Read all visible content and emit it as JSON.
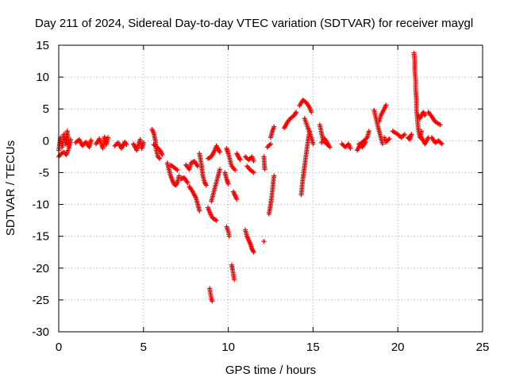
{
  "chart_data": {
    "type": "scatter",
    "title": "Day 211 of 2024, Sidereal Day-to-day VTEC variation (SDTVAR) for receiver maygl",
    "xlabel": "GPS time / hours",
    "ylabel": "SDTVAR / TECUs",
    "xlim": [
      0,
      25
    ],
    "ylim": [
      -30,
      15
    ],
    "xticks": [
      0,
      5,
      10,
      15,
      20,
      25
    ],
    "yticks": [
      -30,
      -25,
      -20,
      -15,
      -10,
      -5,
      0,
      5,
      10,
      15
    ],
    "grid": true,
    "marker": "+",
    "color": "#ff0000",
    "series": [
      {
        "name": "SDTVAR",
        "segments": [
          [
            [
              0.0,
              -1.5
            ],
            [
              0.1,
              0.5
            ],
            [
              0.2,
              -1.0
            ],
            [
              0.3,
              1.0
            ],
            [
              0.4,
              -0.5
            ],
            [
              0.5,
              1.5
            ],
            [
              0.6,
              -1.2
            ],
            [
              0.7,
              0.2
            ]
          ],
          [
            [
              0.0,
              -2.5
            ],
            [
              0.15,
              -2.0
            ],
            [
              0.3,
              -1.8
            ],
            [
              0.45,
              -2.2
            ],
            [
              0.55,
              -1.5
            ]
          ],
          [
            [
              1.0,
              -0.3
            ],
            [
              1.2,
              0.2
            ],
            [
              1.4,
              -0.8
            ],
            [
              1.6,
              -0.2
            ],
            [
              1.8,
              -1.0
            ],
            [
              1.9,
              0.1
            ]
          ],
          [
            [
              2.2,
              -0.5
            ],
            [
              2.4,
              0.3
            ],
            [
              2.6,
              -1.2
            ],
            [
              2.7,
              0.6
            ],
            [
              2.8,
              -0.6
            ],
            [
              2.9,
              0.5
            ]
          ],
          [
            [
              3.3,
              -0.8
            ],
            [
              3.5,
              -0.3
            ],
            [
              3.7,
              -1.2
            ],
            [
              3.9,
              -0.2
            ],
            [
              4.0,
              -0.6
            ]
          ],
          [
            [
              4.4,
              -0.5
            ],
            [
              4.6,
              -1.5
            ],
            [
              4.8,
              0.2
            ],
            [
              4.9,
              -1.2
            ],
            [
              5.0,
              -0.3
            ]
          ],
          [
            [
              5.5,
              1.8
            ],
            [
              5.6,
              1.2
            ],
            [
              5.7,
              0.0
            ],
            [
              5.75,
              -1.5
            ],
            [
              5.85,
              -2.5
            ],
            [
              5.95,
              -2.8
            ]
          ],
          [
            [
              5.6,
              -0.6
            ],
            [
              5.8,
              -1.0
            ],
            [
              6.0,
              -1.6
            ],
            [
              6.1,
              -2.2
            ]
          ],
          [
            [
              6.4,
              -3.5
            ],
            [
              6.5,
              -4.5
            ],
            [
              6.6,
              -5.5
            ],
            [
              6.7,
              -6.2
            ],
            [
              6.8,
              -6.8
            ],
            [
              6.9,
              -7.0
            ],
            [
              7.0,
              -6.5
            ],
            [
              7.1,
              -5.5
            ]
          ],
          [
            [
              6.6,
              -3.8
            ],
            [
              6.8,
              -4.2
            ],
            [
              7.0,
              -4.6
            ]
          ],
          [
            [
              7.2,
              -6.0
            ],
            [
              7.4,
              -5.8
            ],
            [
              7.6,
              -6.6
            ]
          ],
          [
            [
              7.5,
              -3.8
            ],
            [
              7.7,
              -4.5
            ],
            [
              7.8,
              -3.5
            ],
            [
              8.0,
              -3.2
            ],
            [
              8.2,
              -4.0
            ]
          ],
          [
            [
              7.7,
              -7.2
            ],
            [
              7.9,
              -8.0
            ],
            [
              8.1,
              -9.0
            ],
            [
              8.2,
              -10.0
            ],
            [
              8.3,
              -11.0
            ]
          ],
          [
            [
              8.3,
              -2.0
            ],
            [
              8.4,
              -3.5
            ],
            [
              8.5,
              -5.5
            ],
            [
              8.6,
              -6.5
            ],
            [
              8.7,
              -7.0
            ]
          ],
          [
            [
              8.8,
              -10.5
            ],
            [
              8.9,
              -11.2
            ],
            [
              9.0,
              -11.8
            ],
            [
              9.1,
              -12.2
            ],
            [
              9.3,
              -12.5
            ]
          ],
          [
            [
              8.8,
              -2.8
            ],
            [
              9.0,
              -2.5
            ],
            [
              9.2,
              -1.5
            ],
            [
              9.3,
              -0.8
            ],
            [
              9.5,
              -1.8
            ]
          ],
          [
            [
              9.0,
              -9.5
            ],
            [
              9.1,
              -8.5
            ],
            [
              9.2,
              -7.5
            ],
            [
              9.3,
              -6.5
            ],
            [
              9.4,
              -5.5
            ],
            [
              9.5,
              -4.5
            ]
          ],
          [
            [
              8.9,
              -23.2
            ],
            [
              8.95,
              -24.0
            ],
            [
              9.0,
              -24.8
            ],
            [
              9.05,
              -25.2
            ]
          ],
          [
            [
              9.9,
              -1.2
            ],
            [
              10.0,
              -2.0
            ],
            [
              10.1,
              -3.0
            ],
            [
              10.2,
              -4.0
            ],
            [
              10.4,
              -4.6
            ]
          ],
          [
            [
              9.8,
              -5.0
            ],
            [
              9.9,
              -6.0
            ],
            [
              10.0,
              -6.8
            ]
          ],
          [
            [
              10.3,
              -8.0
            ],
            [
              10.4,
              -8.6
            ],
            [
              10.5,
              -9.2
            ]
          ],
          [
            [
              9.9,
              -13.5
            ],
            [
              10.0,
              -14.2
            ],
            [
              10.05,
              -15.0
            ]
          ],
          [
            [
              10.2,
              -19.5
            ],
            [
              10.25,
              -20.2
            ],
            [
              10.3,
              -21.0
            ],
            [
              10.35,
              -21.8
            ]
          ],
          [
            [
              10.5,
              -2.0
            ],
            [
              10.6,
              -2.5
            ],
            [
              10.7,
              -3.0
            ]
          ],
          [
            [
              11.0,
              -14.0
            ],
            [
              11.1,
              -15.0
            ],
            [
              11.2,
              -15.6
            ],
            [
              11.3,
              -16.2
            ],
            [
              11.4,
              -17.0
            ],
            [
              11.5,
              -17.5
            ]
          ],
          [
            [
              11.0,
              -2.5
            ],
            [
              11.2,
              -3.0
            ],
            [
              11.4,
              -2.5
            ],
            [
              11.5,
              -3.2
            ]
          ],
          [
            [
              11.1,
              -4.0
            ],
            [
              11.3,
              -4.6
            ],
            [
              11.5,
              -5.0
            ]
          ],
          [
            [
              12.1,
              -2.5
            ],
            [
              12.15,
              -4.5
            ]
          ],
          [
            [
              12.1,
              -15.8
            ]
          ],
          [
            [
              12.4,
              -11.5
            ],
            [
              12.5,
              -10.0
            ],
            [
              12.6,
              -8.0
            ],
            [
              12.65,
              -6.5
            ],
            [
              12.7,
              -5.5
            ]
          ],
          [
            [
              12.5,
              0.5
            ],
            [
              12.6,
              1.5
            ],
            [
              12.7,
              2.2
            ]
          ],
          [
            [
              12.3,
              -1.0
            ],
            [
              12.5,
              -0.5
            ]
          ],
          [
            [
              13.3,
              2.0
            ],
            [
              13.5,
              3.0
            ],
            [
              13.7,
              3.6
            ],
            [
              13.9,
              4.0
            ],
            [
              14.0,
              4.5
            ]
          ],
          [
            [
              14.2,
              5.5
            ],
            [
              14.4,
              6.4
            ],
            [
              14.6,
              6.0
            ],
            [
              14.8,
              5.2
            ],
            [
              14.9,
              4.5
            ]
          ],
          [
            [
              14.3,
              -8.5
            ],
            [
              14.4,
              -6.0
            ],
            [
              14.5,
              -4.0
            ],
            [
              14.6,
              -2.0
            ],
            [
              14.7,
              0.0
            ],
            [
              14.8,
              1.5
            ]
          ],
          [
            [
              14.5,
              3.5
            ],
            [
              14.7,
              2.0
            ],
            [
              14.9,
              0.5
            ],
            [
              15.0,
              -0.5
            ]
          ],
          [
            [
              15.4,
              2.5
            ],
            [
              15.5,
              1.2
            ],
            [
              15.6,
              0.0
            ],
            [
              15.8,
              -0.5
            ],
            [
              16.0,
              -1.0
            ]
          ],
          [
            [
              15.5,
              -0.3
            ],
            [
              15.7,
              0.3
            ],
            [
              15.9,
              -0.6
            ]
          ],
          [
            [
              16.7,
              -0.5
            ],
            [
              16.9,
              -1.0
            ],
            [
              17.1,
              -0.5
            ],
            [
              17.2,
              -1.2
            ]
          ],
          [
            [
              17.6,
              -1.5
            ],
            [
              17.8,
              -0.5
            ],
            [
              18.0,
              0.0
            ],
            [
              18.2,
              0.5
            ],
            [
              18.3,
              1.5
            ]
          ],
          [
            [
              17.7,
              -0.5
            ],
            [
              17.9,
              -1.0
            ],
            [
              18.1,
              -0.2
            ]
          ],
          [
            [
              18.6,
              4.8
            ],
            [
              18.8,
              2.5
            ],
            [
              18.9,
              1.5
            ],
            [
              19.0,
              0.5
            ],
            [
              19.1,
              -0.5
            ]
          ],
          [
            [
              18.9,
              3.0
            ],
            [
              19.0,
              4.0
            ],
            [
              19.2,
              5.0
            ],
            [
              19.3,
              5.6
            ]
          ],
          [
            [
              19.2,
              0.5
            ],
            [
              19.3,
              -0.2
            ],
            [
              19.5,
              0.3
            ]
          ],
          [
            [
              19.7,
              1.5
            ],
            [
              20.0,
              1.0
            ],
            [
              20.2,
              0.5
            ],
            [
              20.4,
              1.0
            ]
          ],
          [
            [
              20.6,
              0.5
            ],
            [
              20.7,
              0.2
            ],
            [
              20.8,
              1.0
            ]
          ],
          [
            [
              20.95,
              13.8
            ],
            [
              21.0,
              12.5
            ],
            [
              21.0,
              11.0
            ],
            [
              21.05,
              9.5
            ],
            [
              21.05,
              8.0
            ],
            [
              21.1,
              6.5
            ],
            [
              21.1,
              5.0
            ],
            [
              21.15,
              3.5
            ],
            [
              21.2,
              2.0
            ],
            [
              21.3,
              0.5
            ],
            [
              21.4,
              1.5
            ]
          ],
          [
            [
              21.2,
              4.0
            ],
            [
              21.3,
              3.5
            ],
            [
              21.5,
              4.5
            ],
            [
              21.6,
              4.0
            ]
          ],
          [
            [
              21.3,
              1.0
            ],
            [
              21.6,
              -0.5
            ],
            [
              21.8,
              0.5
            ]
          ],
          [
            [
              21.8,
              4.5
            ],
            [
              22.0,
              3.8
            ],
            [
              22.2,
              3.0
            ],
            [
              22.5,
              2.5
            ]
          ],
          [
            [
              22.0,
              0.5
            ],
            [
              22.2,
              -0.3
            ],
            [
              22.4,
              0.0
            ],
            [
              22.6,
              -0.5
            ]
          ]
        ]
      }
    ]
  }
}
